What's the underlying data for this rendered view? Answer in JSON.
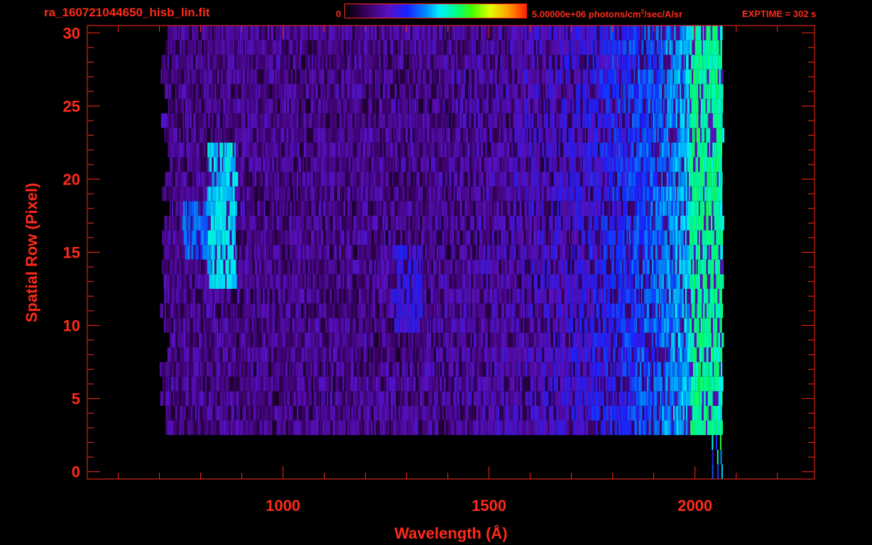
{
  "header": {
    "file_title": "ra_160721044650_hisb_lin.fit",
    "colorbar_min": "0",
    "colorbar_max_prefix": "5.00000e+06 photons/cm",
    "colorbar_max_exp": "2",
    "colorbar_max_suffix": "/sec/A/sr",
    "exptime": "EXPTIME = 302 s"
  },
  "colors": {
    "axis": "#ff2a1a",
    "background": "#000000"
  },
  "chart_data": {
    "type": "heatmap",
    "title": "ra_160721044650_hisb_lin.fit",
    "xlabel": "Wavelength (Å)",
    "ylabel": "Spatial Row (Pixel)",
    "xlim": [
      525,
      2290
    ],
    "ylim": [
      -0.5,
      30.5
    ],
    "x_ticks": [
      1000,
      1500,
      2000
    ],
    "y_ticks": [
      0,
      5,
      10,
      15,
      20,
      25,
      30
    ],
    "x_tick_labels": [
      "1000",
      "1500",
      "2000"
    ],
    "y_tick_labels": [
      "0",
      "5",
      "10",
      "15",
      "20",
      "25",
      "30"
    ],
    "x_minor_step": 100,
    "y_minor_step": 1,
    "colorscale": {
      "min": 0,
      "max": 5000000,
      "units": "photons/cm^2/sec/A/sr",
      "colormap": "rainbow"
    },
    "data_extent": {
      "x_range": [
        700,
        2080
      ],
      "row_range": [
        0,
        30
      ]
    },
    "features": [
      {
        "x": 850,
        "rows": [
          13,
          22
        ],
        "intensity": 0.55
      },
      {
        "x": 790,
        "rows": [
          15,
          18
        ],
        "intensity": 0.45
      },
      {
        "x": 1300,
        "rows": [
          10,
          15
        ],
        "intensity": 0.35
      },
      {
        "x": 2020,
        "rows": [
          3,
          30
        ],
        "intensity": 0.65
      }
    ]
  }
}
